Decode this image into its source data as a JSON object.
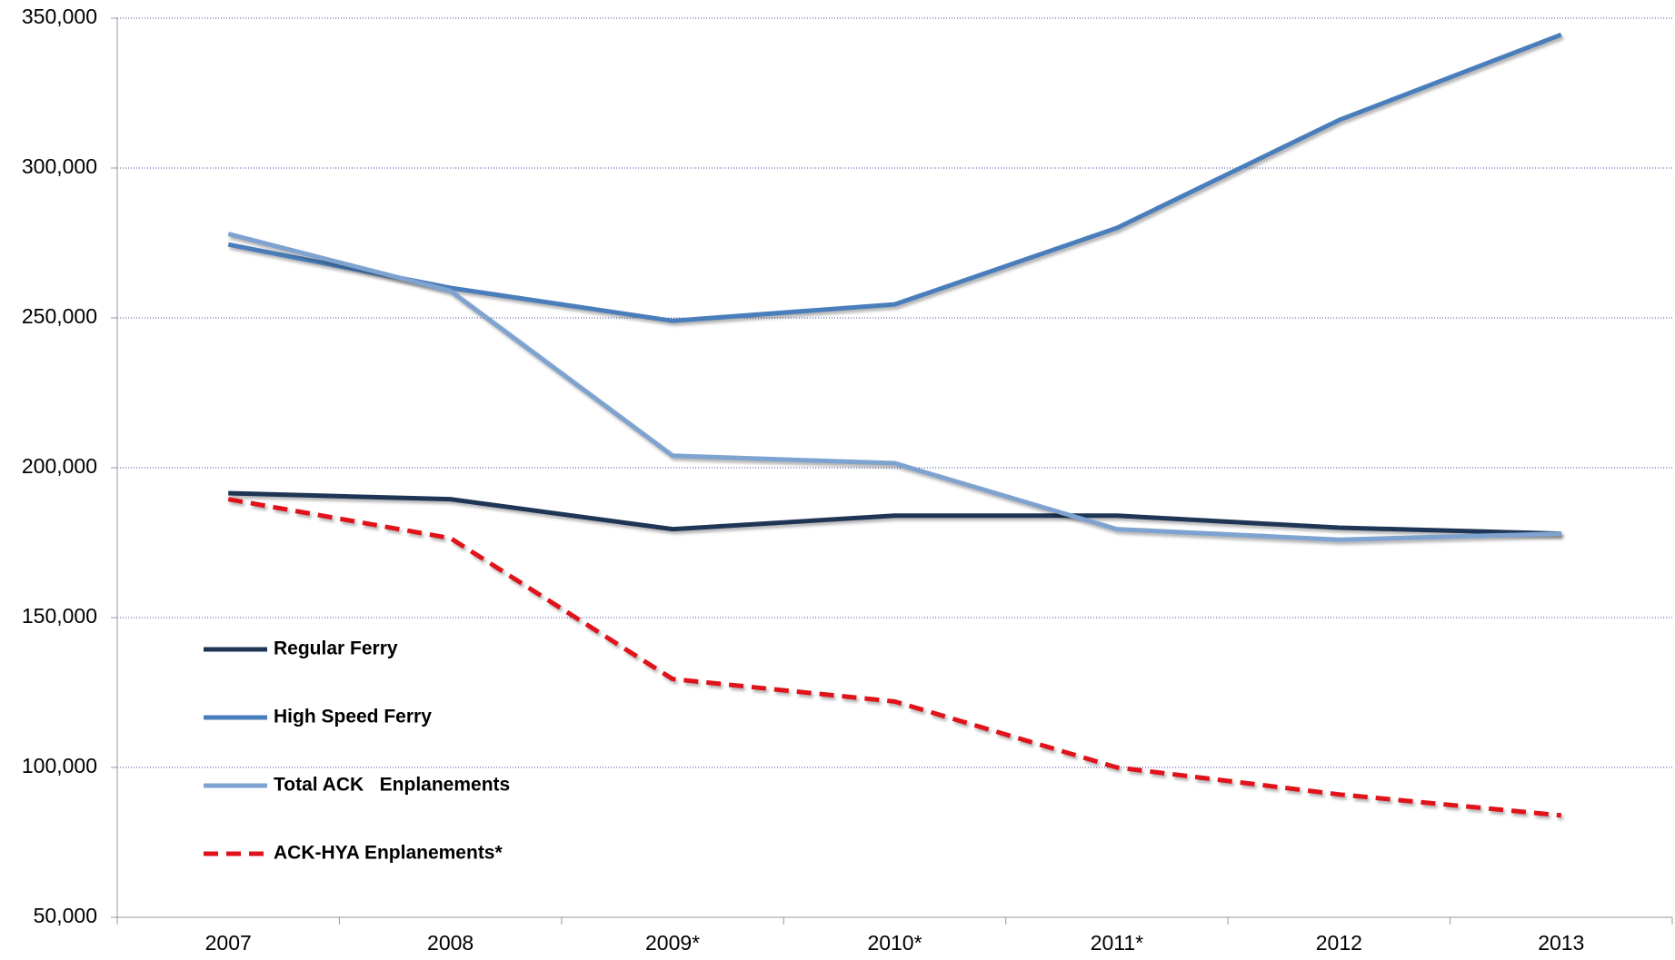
{
  "chart_data": {
    "type": "line",
    "categories": [
      "2007",
      "2008",
      "2009*",
      "2010*",
      "2011*",
      "2012",
      "2013"
    ],
    "series": [
      {
        "name": "Regular Ferry",
        "color": "#1f3556",
        "values": [
          191500,
          189500,
          179500,
          184000,
          184000,
          180000,
          178000
        ]
      },
      {
        "name": "High Speed Ferry",
        "color": "#4a7ebb",
        "values": [
          274500,
          260000,
          249000,
          254500,
          280000,
          316000,
          344500
        ]
      },
      {
        "name": "Total ACK   Enplanements",
        "color": "#7fa3d0",
        "values": [
          278000,
          259000,
          204000,
          201500,
          179500,
          176000,
          178000
        ]
      },
      {
        "name": "ACK-HYA Enplanements*",
        "color": "#e0121a",
        "dashed": true,
        "values": [
          189500,
          176500,
          129500,
          122000,
          100000,
          91000,
          84000
        ]
      }
    ],
    "ylim": [
      50000,
      350000
    ],
    "yticks": [
      {
        "value": 50000,
        "label": "50,000"
      },
      {
        "value": 100000,
        "label": "100,000"
      },
      {
        "value": 150000,
        "label": "150,000"
      },
      {
        "value": 200000,
        "label": "200,000"
      },
      {
        "value": 250000,
        "label": "250,000"
      },
      {
        "value": 300000,
        "label": "300,000"
      },
      {
        "value": 350000,
        "label": "350,000"
      }
    ],
    "grid": true,
    "legend": "left"
  }
}
